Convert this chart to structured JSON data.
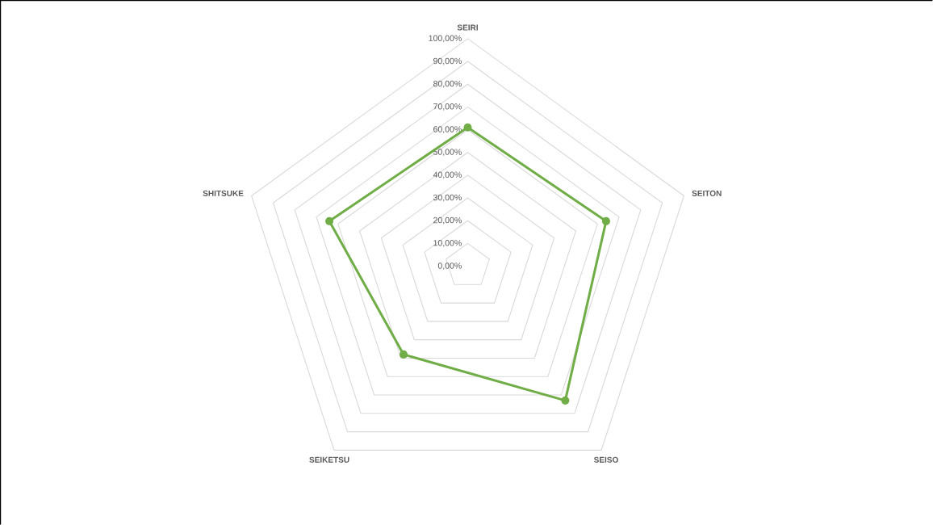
{
  "chart_data": {
    "type": "radar",
    "categories": [
      "SEIRI",
      "SEITON",
      "SEISO",
      "SEIKETSU",
      "SHITSUKE"
    ],
    "series": [
      {
        "color": "#70ad47",
        "values": [
          61,
          64,
          73,
          48,
          64
        ]
      }
    ],
    "ylim": [
      0,
      100
    ],
    "yticks": [
      {
        "value": 0,
        "label": "0,00%"
      },
      {
        "value": 10,
        "label": "10,00%"
      },
      {
        "value": 20,
        "label": "20,00%"
      },
      {
        "value": 30,
        "label": "30,00%"
      },
      {
        "value": 40,
        "label": "40,00%"
      },
      {
        "value": 50,
        "label": "50,00%"
      },
      {
        "value": 60,
        "label": "60,00%"
      },
      {
        "value": 70,
        "label": "70,00%"
      },
      {
        "value": 80,
        "label": "80,00%"
      },
      {
        "value": 90,
        "label": "90,00%"
      },
      {
        "value": 100,
        "label": "100,00%"
      }
    ],
    "grid": true,
    "marker": "circle"
  }
}
